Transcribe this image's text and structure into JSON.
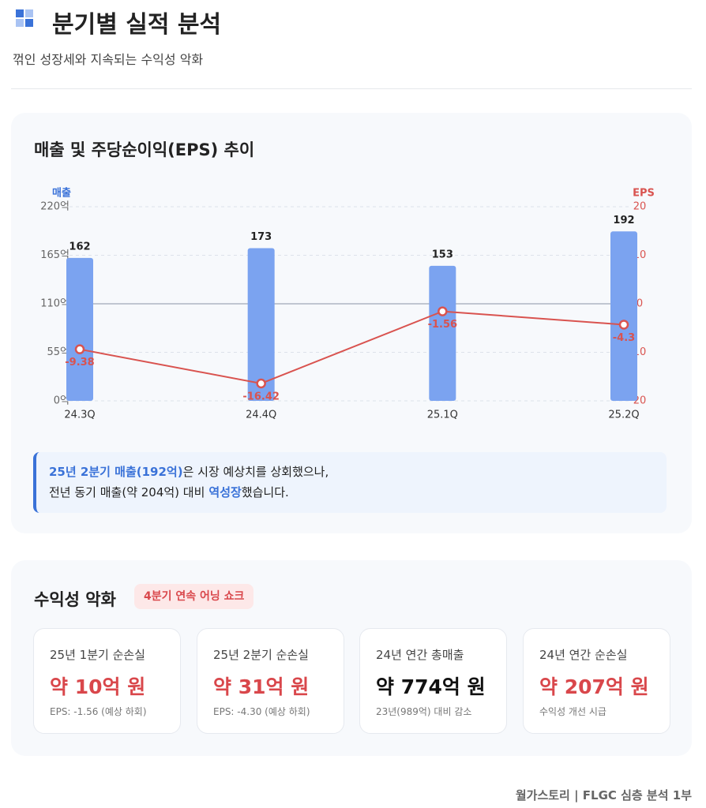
{
  "header": {
    "title": "분기별 실적 분석",
    "subtitle": "꺾인 성장세와 지속되는 수익성 악화"
  },
  "chart_data": {
    "type": "bar",
    "title": "매출 및 주당순이익(EPS) 추이",
    "categories": [
      "24.3Q",
      "24.4Q",
      "25.1Q",
      "25.2Q"
    ],
    "series": [
      {
        "name": "매출",
        "type": "bar",
        "color": "#7ba3f0",
        "values": [
          162,
          173,
          153,
          192
        ]
      },
      {
        "name": "EPS",
        "type": "line",
        "axis": "y2",
        "color": "#d9534f",
        "values": [
          -9.38,
          -16.42,
          -1.56,
          -4.3
        ]
      }
    ],
    "ylim": [
      0,
      220
    ],
    "yticks": [
      {
        "value": 0,
        "label": "0억"
      },
      {
        "value": 55,
        "label": "55억"
      },
      {
        "value": 110,
        "label": "110억"
      },
      {
        "value": 165,
        "label": "165억"
      },
      {
        "value": 220,
        "label": "220억"
      }
    ],
    "y2lim": [
      -20,
      20
    ],
    "y2ticks": [
      {
        "value": -20,
        "label": "20"
      },
      {
        "value": -10,
        "label": "10"
      },
      0,
      10,
      20
    ],
    "grid": true
  },
  "note": {
    "line1": [
      "25년 2분기 매출(192억)",
      "은 시장 예상치를 상회했으나,"
    ],
    "line2": [
      "전년 동기 매출(약 204억) 대비",
      "역성장",
      "했습니다."
    ]
  },
  "profit": {
    "title": "수익성 악화",
    "badge": "4분기 연속 어닝 쇼크",
    "cards": [
      {
        "label": "25년 1분기 순손실",
        "value": "약 10억 원",
        "note": "EPS: -1.56 (예상 하회)",
        "color": "#d9474b"
      },
      {
        "label": "25년 2분기 순손실",
        "value": "약 31억 원",
        "note": "EPS: -4.30 (예상 하회)",
        "color": "#d9474b"
      },
      {
        "label": "24년 연간 총매출",
        "value": "약 774억 원",
        "note": "23년(989억) 대비 감소",
        "color": "#111111"
      },
      {
        "label": "24년 연간 순손실",
        "value": "약 207억 원",
        "note": "수익성 개선 시급",
        "color": "#d9474b"
      }
    ]
  },
  "footer": "월가스토리 | FLGC 심층 분석 1부"
}
